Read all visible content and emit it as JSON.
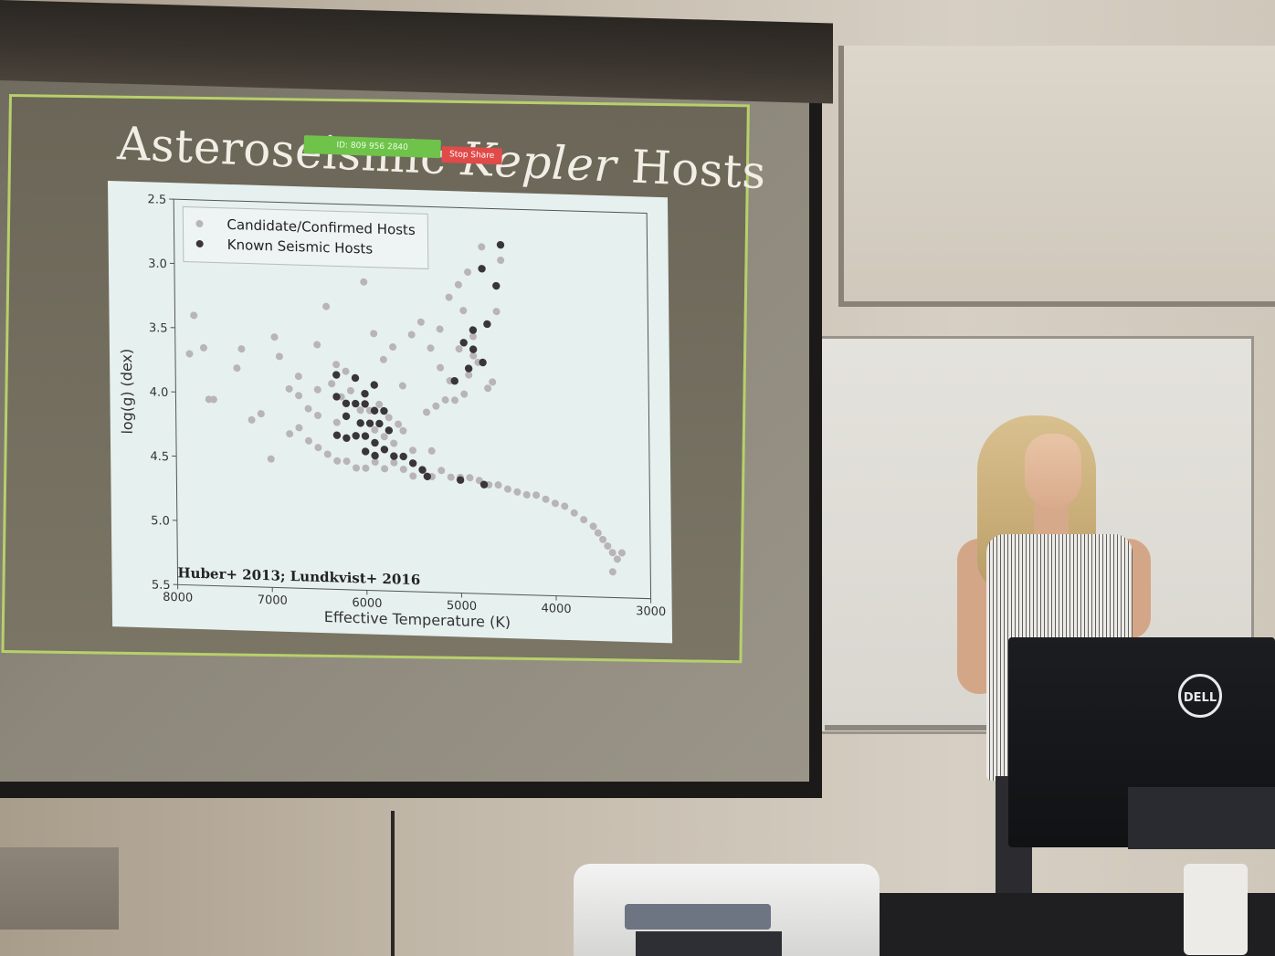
{
  "slide": {
    "title_part1": "Asteroseismic ",
    "title_italic": "Kepler",
    "title_part2": " Hosts",
    "zoom_bar_text": "ID: 809 956 2840",
    "stop_share_label": "Stop Share",
    "citation": "Huber+ 2013; Lundkvist+ 2016"
  },
  "monitor": {
    "brand": "DELL"
  },
  "chart_data": {
    "type": "scatter",
    "xlabel": "Effective Temperature (K)",
    "ylabel": "log(g) (dex)",
    "xlim": [
      8000,
      3000
    ],
    "ylim": [
      2.5,
      5.5
    ],
    "x_ticks": [
      "8000",
      "7000",
      "6000",
      "5000",
      "4000",
      "3000"
    ],
    "y_ticks": [
      "2.5",
      "3.0",
      "3.5",
      "4.0",
      "4.5",
      "5.0",
      "5.5"
    ],
    "legend_position": "top-left",
    "series": [
      {
        "name": "Candidate/Confirmed Hosts",
        "color": "#b8b4b8",
        "points": [
          [
            7800,
            3.4
          ],
          [
            7850,
            3.7
          ],
          [
            7700,
            3.65
          ],
          [
            7650,
            4.05
          ],
          [
            7600,
            4.05
          ],
          [
            7300,
            3.65
          ],
          [
            7350,
            3.8
          ],
          [
            7200,
            4.2
          ],
          [
            7100,
            4.15
          ],
          [
            6950,
            3.55
          ],
          [
            6900,
            3.7
          ],
          [
            7000,
            4.5
          ],
          [
            6800,
            3.95
          ],
          [
            6700,
            3.85
          ],
          [
            6600,
            4.1
          ],
          [
            6500,
            3.6
          ],
          [
            6400,
            3.3
          ],
          [
            6300,
            3.75
          ],
          [
            6200,
            3.8
          ],
          [
            6100,
            3.85
          ],
          [
            6000,
            3.1
          ],
          [
            5900,
            3.5
          ],
          [
            5800,
            3.7
          ],
          [
            5700,
            3.6
          ],
          [
            5600,
            3.9
          ],
          [
            5500,
            3.5
          ],
          [
            5400,
            3.4
          ],
          [
            5300,
            3.6
          ],
          [
            5200,
            3.45
          ],
          [
            5100,
            3.2
          ],
          [
            5000,
            3.1
          ],
          [
            4950,
            3.3
          ],
          [
            4900,
            3.0
          ],
          [
            4850,
            3.5
          ],
          [
            4800,
            3.7
          ],
          [
            4750,
            2.8
          ],
          [
            4700,
            3.9
          ],
          [
            4650,
            3.85
          ],
          [
            4600,
            3.3
          ],
          [
            4550,
            2.9
          ],
          [
            6800,
            4.3
          ],
          [
            6700,
            4.25
          ],
          [
            6600,
            4.35
          ],
          [
            6500,
            4.4
          ],
          [
            6400,
            4.45
          ],
          [
            6300,
            4.5
          ],
          [
            6200,
            4.5
          ],
          [
            6100,
            4.55
          ],
          [
            6000,
            4.55
          ],
          [
            5900,
            4.5
          ],
          [
            5800,
            4.55
          ],
          [
            5700,
            4.5
          ],
          [
            5600,
            4.55
          ],
          [
            5500,
            4.6
          ],
          [
            5400,
            4.55
          ],
          [
            5300,
            4.6
          ],
          [
            5200,
            4.55
          ],
          [
            5100,
            4.6
          ],
          [
            5000,
            4.6
          ],
          [
            4900,
            4.6
          ],
          [
            4800,
            4.62
          ],
          [
            4700,
            4.65
          ],
          [
            4600,
            4.65
          ],
          [
            4500,
            4.68
          ],
          [
            4400,
            4.7
          ],
          [
            4300,
            4.72
          ],
          [
            4200,
            4.72
          ],
          [
            4100,
            4.75
          ],
          [
            4000,
            4.78
          ],
          [
            3900,
            4.8
          ],
          [
            3800,
            4.85
          ],
          [
            3700,
            4.9
          ],
          [
            3600,
            4.95
          ],
          [
            3550,
            5.0
          ],
          [
            3500,
            5.05
          ],
          [
            3450,
            5.1
          ],
          [
            3400,
            5.15
          ],
          [
            3350,
            5.2
          ],
          [
            3300,
            5.15
          ],
          [
            3400,
            5.3
          ],
          [
            6500,
            4.15
          ],
          [
            6300,
            4.2
          ],
          [
            6200,
            4.05
          ],
          [
            6100,
            4.3
          ],
          [
            5900,
            4.25
          ],
          [
            5800,
            4.3
          ],
          [
            5700,
            4.35
          ],
          [
            5600,
            4.25
          ],
          [
            5500,
            4.4
          ],
          [
            5300,
            4.4
          ],
          [
            6700,
            4.0
          ],
          [
            6500,
            3.95
          ],
          [
            6350,
            3.9
          ],
          [
            6250,
            4.0
          ],
          [
            6150,
            3.95
          ],
          [
            6050,
            4.1
          ],
          [
            5950,
            4.1
          ],
          [
            5850,
            4.05
          ],
          [
            5750,
            4.15
          ],
          [
            5650,
            4.2
          ],
          [
            5350,
            4.1
          ],
          [
            5250,
            4.05
          ],
          [
            5150,
            4.0
          ],
          [
            5050,
            4.0
          ],
          [
            4950,
            3.95
          ],
          [
            5100,
            3.85
          ],
          [
            5200,
            3.75
          ],
          [
            4900,
            3.8
          ],
          [
            4850,
            3.65
          ],
          [
            5000,
            3.6
          ]
        ]
      },
      {
        "name": "Known Seismic Hosts",
        "color": "#3a3638",
        "points": [
          [
            4550,
            2.78
          ],
          [
            4750,
            2.97
          ],
          [
            4600,
            3.1
          ],
          [
            4700,
            3.4
          ],
          [
            4850,
            3.45
          ],
          [
            4950,
            3.55
          ],
          [
            4850,
            3.6
          ],
          [
            4750,
            3.7
          ],
          [
            4900,
            3.75
          ],
          [
            5050,
            3.85
          ],
          [
            6300,
            3.83
          ],
          [
            6100,
            3.85
          ],
          [
            5900,
            3.9
          ],
          [
            6000,
            3.97
          ],
          [
            6300,
            4.0
          ],
          [
            6200,
            4.05
          ],
          [
            6100,
            4.05
          ],
          [
            6000,
            4.05
          ],
          [
            5900,
            4.1
          ],
          [
            5800,
            4.1
          ],
          [
            6200,
            4.15
          ],
          [
            6050,
            4.2
          ],
          [
            5950,
            4.2
          ],
          [
            5850,
            4.2
          ],
          [
            5750,
            4.25
          ],
          [
            6100,
            4.3
          ],
          [
            6000,
            4.3
          ],
          [
            5900,
            4.35
          ],
          [
            6200,
            4.32
          ],
          [
            6300,
            4.3
          ],
          [
            5800,
            4.4
          ],
          [
            5700,
            4.45
          ],
          [
            5600,
            4.45
          ],
          [
            5500,
            4.5
          ],
          [
            5400,
            4.55
          ],
          [
            5350,
            4.6
          ],
          [
            5000,
            4.62
          ],
          [
            4750,
            4.65
          ],
          [
            5900,
            4.45
          ],
          [
            6000,
            4.42
          ]
        ]
      }
    ]
  }
}
